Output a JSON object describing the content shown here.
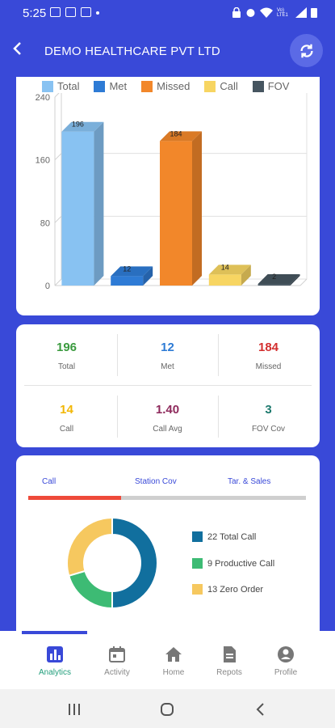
{
  "status_bar": {
    "time": "5:25",
    "signal": "Vo) LTE1"
  },
  "appbar": {
    "title": "DEMO HEALTHCARE PVT LTD"
  },
  "colors": {
    "total": "#88c2f2",
    "met": "#2e7bd5",
    "missed": "#f2872a",
    "call": "#f7d562",
    "fov": "#465560",
    "primary": "#3949d8"
  },
  "chart_data": {
    "type": "bar",
    "categories": [
      "Total",
      "Met",
      "Missed",
      "Call",
      "FOV"
    ],
    "values": [
      196,
      12,
      184,
      14,
      2
    ],
    "legend": [
      "Total",
      "Met",
      "Missed",
      "Call",
      "FOV"
    ],
    "yticks": [
      "0",
      "80",
      "160",
      "240"
    ],
    "ylim": [
      0,
      240
    ],
    "grid": true,
    "legend_position": "top"
  },
  "stats": [
    {
      "value": "196",
      "label": "Total",
      "color": "#3a9a3e"
    },
    {
      "value": "12",
      "label": "Met",
      "color": "#2e7bd5"
    },
    {
      "value": "184",
      "label": "Missed",
      "color": "#d32f2f"
    },
    {
      "value": "14",
      "label": "Call",
      "color": "#f2b705"
    },
    {
      "value": "1.40",
      "label": "Call Avg",
      "color": "#8e2a5c"
    },
    {
      "value": "3",
      "label": "FOV Cov",
      "color": "#1e7a6e"
    }
  ],
  "tabs": [
    "Call",
    "Station Cov",
    "Tar. & Sales"
  ],
  "donut": [
    {
      "label": "22 Total Call",
      "value": 22,
      "color": "#116f9e"
    },
    {
      "label": "9 Productive Call",
      "value": 9,
      "color": "#3dbb74"
    },
    {
      "label": "13 Zero Order",
      "value": 13,
      "color": "#f6c85f"
    }
  ],
  "nav": [
    "Analytics",
    "Activity",
    "Home",
    "Repots",
    "Profile"
  ]
}
